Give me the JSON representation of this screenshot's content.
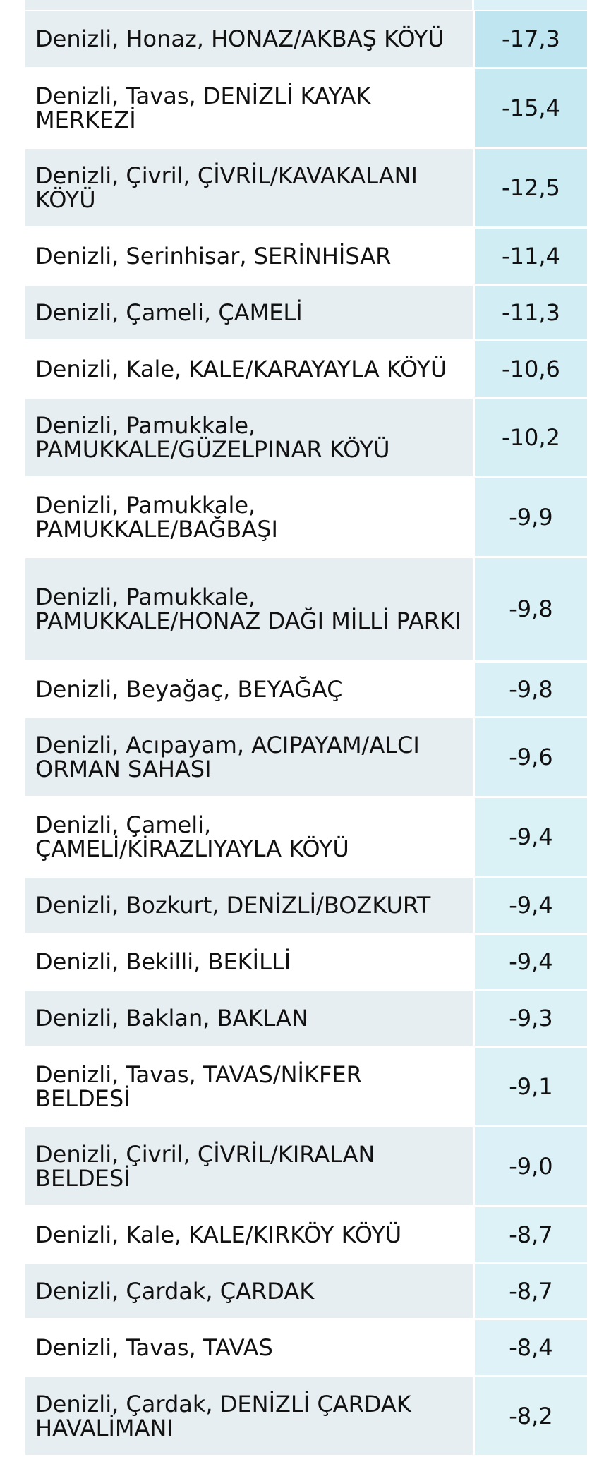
{
  "rows": [
    {
      "name": "Denizli, Honaz, HONAZ/AKBAŞ KÖYÜ",
      "value": "-17,3",
      "heat": "#bfe6f0",
      "height": 81
    },
    {
      "name": "Denizli, Tavas, DENİZLİ KAYAK MERKEZİ",
      "value": "-15,4",
      "heat": "#c6e9f2",
      "height": 113
    },
    {
      "name": "Denizli, Çivril, ÇİVRİL/KAVAKALANI KÖYÜ",
      "value": "-12,5",
      "heat": "#cdebf3",
      "height": 113
    },
    {
      "name": "Denizli, Serinhisar, SERİNHİSAR",
      "value": "-11,4",
      "heat": "#d1edf4",
      "height": 81
    },
    {
      "name": "Denizli, Çameli, ÇAMELİ",
      "value": "-11,3",
      "heat": "#d2edf4",
      "height": 79
    },
    {
      "name": "Denizli, Kale, KALE/KARAYAYLA KÖYÜ",
      "value": "-10,6",
      "heat": "#d4eef5",
      "height": 81
    },
    {
      "name": "Denizli, Pamukkale, PAMUKKALE/GÜZELPINAR KÖYÜ",
      "value": "-10,2",
      "heat": "#d6eff5",
      "height": 113
    },
    {
      "name": "Denizli, Pamukkale, PAMUKKALE/BAĞBAŞI",
      "value": "-9,9",
      "heat": "#d8f0f6",
      "height": 113
    },
    {
      "name": "Denizli, Pamukkale, PAMUKKALE/HONAZ DAĞI MİLLİ PARKI",
      "value": "-9,8",
      "heat": "#d8f0f6",
      "height": 148
    },
    {
      "name": "Denizli, Beyağaç, BEYAĞAÇ",
      "value": "-9,8",
      "heat": "#d8f0f6",
      "height": 79
    },
    {
      "name": "Denizli, Acıpayam, ACIPAYAM/ALCI ORMAN SAHASI",
      "value": "-9,6",
      "heat": "#d9f0f6",
      "height": 113
    },
    {
      "name": "Denizli, Çameli, ÇAMELİ/KİRAZLIYAYLA KÖYÜ",
      "value": "-9,4",
      "heat": "#daf1f6",
      "height": 113
    },
    {
      "name": "Denizli, Bozkurt, DENİZLİ/BOZKURT",
      "value": "-9,4",
      "heat": "#daf1f6",
      "height": 81
    },
    {
      "name": "Denizli, Bekilli, BEKİLLİ",
      "value": "-9,4",
      "heat": "#daf1f6",
      "height": 79
    },
    {
      "name": "Denizli, Baklan, BAKLAN",
      "value": "-9,3",
      "heat": "#dbf1f6",
      "height": 81
    },
    {
      "name": "Denizli, Tavas, TAVAS/NİKFER BELDESİ",
      "value": "-9,1",
      "heat": "#dbf1f6",
      "height": 113
    },
    {
      "name": "Denizli, Çivril, ÇİVRİL/KIRALAN BELDESİ",
      "value": "-9,0",
      "heat": "#dcf1f7",
      "height": 113
    },
    {
      "name": "Denizli, Kale, KALE/KIRKÖY KÖYÜ",
      "value": "-8,7",
      "heat": "#ddf2f7",
      "height": 81
    },
    {
      "name": "Denizli, Çardak, ÇARDAK",
      "value": "-8,7",
      "heat": "#ddf2f7",
      "height": 79
    },
    {
      "name": "Denizli, Tavas, TAVAS",
      "value": "-8,4",
      "heat": "#def2f7",
      "height": 81
    },
    {
      "name": "Denizli, Çardak, DENİZLİ ÇARDAK HAVALİMANI",
      "value": "-8,2",
      "heat": "#dff3f7",
      "height": 113
    }
  ]
}
